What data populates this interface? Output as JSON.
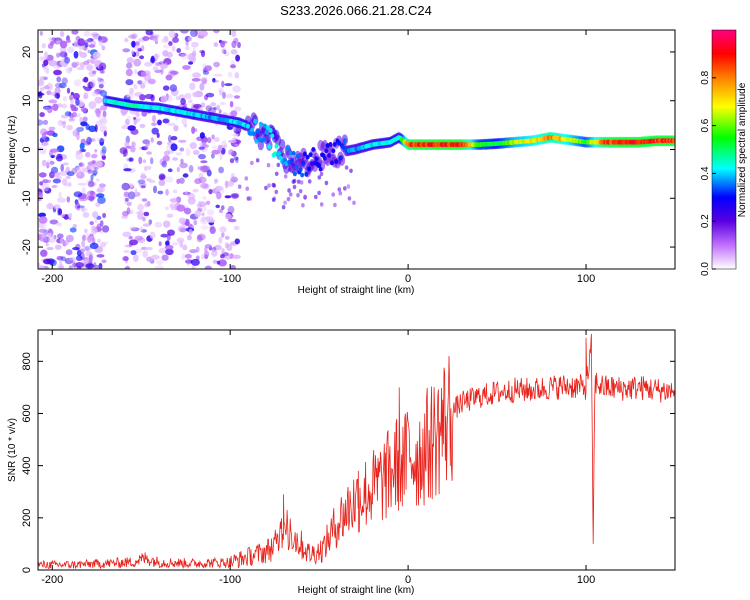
{
  "figure": {
    "title": "S233.2026.066.21.28.C24"
  },
  "chart_data": [
    {
      "type": "heatmap",
      "name": "spectrogram",
      "xlabel": "Height of straight line (km)",
      "ylabel": "Frequency (Hz)",
      "xlim": [
        -208,
        150
      ],
      "ylim": [
        -24.5,
        24.5
      ],
      "xticks": [
        -200,
        -100,
        0,
        100
      ],
      "yticks": [
        -20,
        -10,
        0,
        10,
        20
      ],
      "colorbar": {
        "label": "Normalized spectral amplitude",
        "range": [
          0.0,
          1.0
        ],
        "ticks": [
          0.0,
          0.2,
          0.4,
          0.6,
          0.8
        ],
        "tick_labels": [
          "0.0",
          "0.2",
          "0.4",
          "0.6",
          "0.8"
        ]
      },
      "main_trace": {
        "x": [
          -170,
          -155,
          -140,
          -125,
          -110,
          -95,
          -85,
          -75,
          -68,
          -60,
          -52,
          -45,
          -38,
          -30,
          -20,
          -10,
          -5,
          0,
          10,
          20,
          30,
          40,
          50,
          60,
          70,
          80,
          90,
          100,
          110,
          120,
          130,
          140,
          150
        ],
        "frequency_hz": [
          10,
          9,
          8.5,
          7.5,
          6.5,
          5.5,
          4,
          1,
          -2,
          -3,
          -2,
          -1,
          -0.5,
          0,
          1,
          1.5,
          2.5,
          1,
          1,
          1,
          1,
          1,
          1.2,
          1.5,
          1.8,
          2.5,
          2,
          1.5,
          1.5,
          1.5,
          1.5,
          1.8,
          1.8
        ],
        "amplitude": [
          0.45,
          0.5,
          0.45,
          0.45,
          0.4,
          0.45,
          0.4,
          0.45,
          0.4,
          0.35,
          0.3,
          0.3,
          0.35,
          0.4,
          0.45,
          0.45,
          0.45,
          0.9,
          0.95,
          0.95,
          0.95,
          0.6,
          0.55,
          0.7,
          0.75,
          0.85,
          0.75,
          0.6,
          0.9,
          0.95,
          0.95,
          0.95,
          0.95
        ]
      },
      "noise_regions": [
        {
          "x_range": [
            -208,
            -170
          ],
          "frequency_range": [
            -24.5,
            24.5
          ],
          "amplitude_range": [
            0.0,
            0.3
          ]
        },
        {
          "x_range": [
            -160,
            -95
          ],
          "frequency_range": [
            -24.5,
            24.5
          ],
          "amplitude_range": [
            0.0,
            0.25
          ]
        }
      ]
    },
    {
      "type": "line",
      "name": "snr",
      "xlabel": "Height of straight line (km)",
      "ylabel": "SNR (10 * v/v)",
      "xlim": [
        -208,
        150
      ],
      "ylim": [
        0,
        920
      ],
      "xticks": [
        -200,
        -100,
        0,
        100
      ],
      "yticks": [
        0,
        200,
        400,
        600,
        800
      ],
      "series": [
        {
          "name": "SNR",
          "color": "#e8221b",
          "x": [
            -208,
            -190,
            -170,
            -155,
            -148,
            -140,
            -120,
            -100,
            -90,
            -80,
            -72,
            -68,
            -62,
            -55,
            -48,
            -40,
            -32,
            -25,
            -18,
            -10,
            -5,
            -2,
            0,
            5,
            10,
            15,
            20,
            25,
            30,
            40,
            50,
            60,
            70,
            80,
            90,
            100,
            103,
            104,
            105,
            110,
            120,
            130,
            140,
            150
          ],
          "y": [
            20,
            20,
            25,
            30,
            45,
            30,
            25,
            30,
            50,
            70,
            110,
            160,
            110,
            60,
            80,
            180,
            250,
            290,
            320,
            370,
            420,
            400,
            460,
            430,
            470,
            510,
            560,
            610,
            640,
            665,
            680,
            690,
            690,
            700,
            705,
            700,
            850,
            100,
            720,
            700,
            695,
            700,
            690,
            685
          ],
          "spikes": [
            {
              "x": -70,
              "y": 290
            },
            {
              "x": -28,
              "y": 380
            },
            {
              "x": -5,
              "y": 700
            },
            {
              "x": 100,
              "y": 890
            },
            {
              "x": 103,
              "y": 905
            },
            {
              "x": 104,
              "y": 100
            }
          ]
        }
      ]
    }
  ]
}
